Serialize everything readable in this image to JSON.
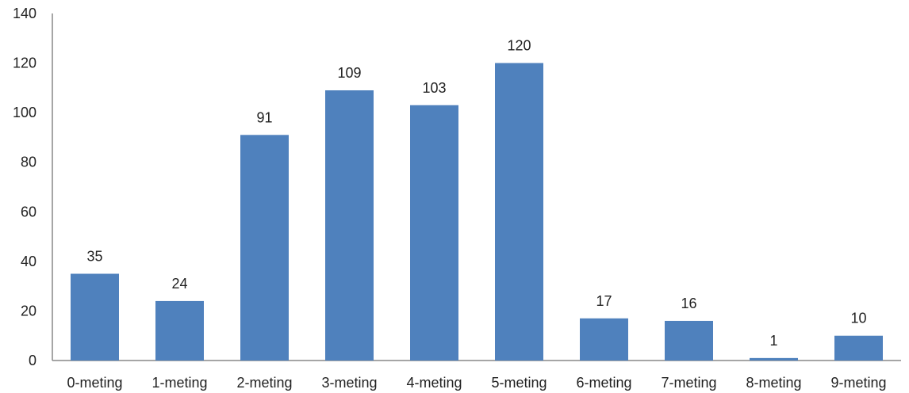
{
  "chart_data": {
    "type": "bar",
    "categories": [
      "0-meting",
      "1-meting",
      "2-meting",
      "3-meting",
      "4-meting",
      "5-meting",
      "6-meting",
      "7-meting",
      "8-meting",
      "9-meting"
    ],
    "values": [
      35,
      24,
      91,
      109,
      103,
      120,
      17,
      16,
      1,
      10
    ],
    "title": "",
    "xlabel": "",
    "ylabel": "",
    "ylim": [
      0,
      140
    ],
    "yticks": [
      0,
      20,
      40,
      60,
      80,
      100,
      120,
      140
    ],
    "grid": false,
    "legend": "none",
    "colors": {
      "bar": "#4F81BD",
      "axis": "#888888"
    }
  }
}
